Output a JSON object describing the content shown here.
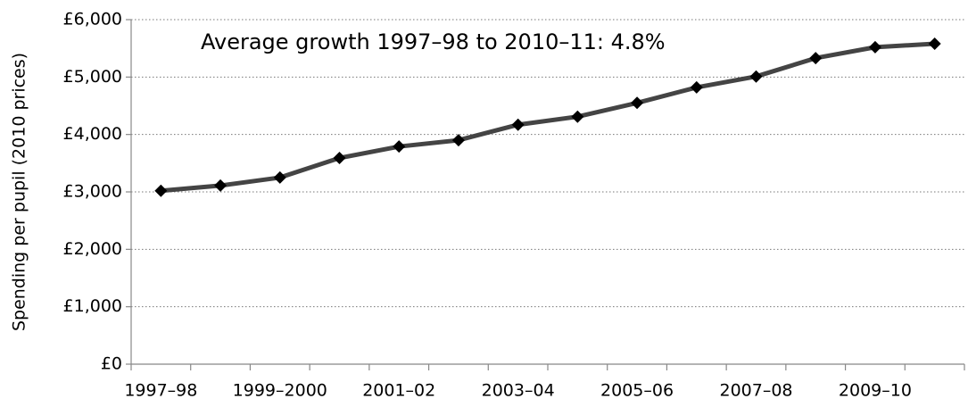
{
  "chart_data": {
    "type": "line",
    "annotation": "Average growth 1997–98 to 2010–11: 4.8%",
    "y_label": "Spending per pupil (2010 prices)",
    "categories": [
      "1997–98",
      null,
      "1999–2000",
      null,
      "2001–02",
      null,
      "2003–04",
      null,
      "2005–06",
      null,
      "2007–08",
      null,
      "2009–10",
      null
    ],
    "series": [
      {
        "color": "#444444",
        "marker_color": "#000000",
        "values": [
          3020,
          3110,
          3250,
          3590,
          3790,
          3900,
          4170,
          4310,
          4550,
          4820,
          5010,
          5330,
          5520,
          5580
        ]
      }
    ],
    "ylim": [
      0,
      6000
    ],
    "yticks": [
      {
        "value": 0,
        "label": "£0"
      },
      {
        "value": 1000,
        "label": "£1,000"
      },
      {
        "value": 2000,
        "label": "£2,000"
      },
      {
        "value": 3000,
        "label": "£3,000"
      },
      {
        "value": 4000,
        "label": "£4,000"
      },
      {
        "value": 5000,
        "label": "£5,000"
      },
      {
        "value": 6000,
        "label": "£6,000"
      }
    ],
    "grid": true
  }
}
